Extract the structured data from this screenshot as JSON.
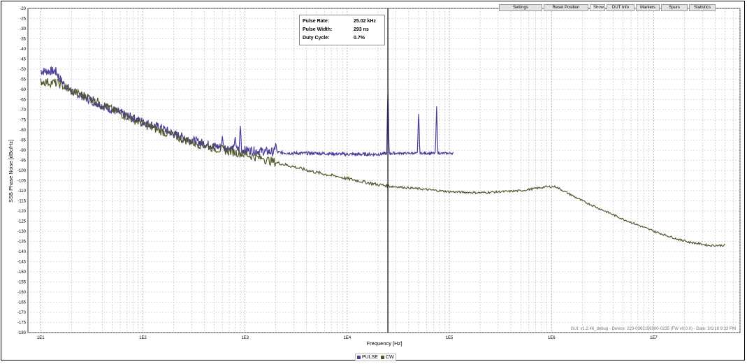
{
  "toolbar": {
    "buttons": [
      "Settings",
      "Reset Position",
      "Show",
      "DUT Info",
      "Markers",
      "Spurs",
      "Statistics"
    ]
  },
  "info": {
    "rows": [
      {
        "label": "Pulse Rate:",
        "value": "25.02 kHz"
      },
      {
        "label": "Pulse Width:",
        "value": "293 ns"
      },
      {
        "label": "Duty Cycle:",
        "value": "0.7%"
      }
    ]
  },
  "footer_note": "GUI: v1.2.46_debug - Device: 223-0363156900-0235 (FW v0.0.0) - Date: 3/1/18 9:32 PM",
  "legend": {
    "items": [
      {
        "name": "PULSE",
        "color": "#4b3f9a"
      },
      {
        "name": "CW",
        "color": "#4f5a2a"
      }
    ]
  },
  "chart_data": {
    "type": "line",
    "xlabel": "Frequency [Hz]",
    "ylabel": "SSB Phase Noise [dBc/Hz]",
    "xscale": "log",
    "xlim": [
      7.5,
      70000000
    ],
    "ylim": [
      -180,
      -20
    ],
    "xticks": [
      10,
      100,
      1000,
      10000,
      100000,
      1000000,
      10000000
    ],
    "xtick_labels": [
      "1E1",
      "1E2",
      "1E3",
      "1E4",
      "1E5",
      "1E6",
      "1E7"
    ],
    "yticks": [
      -20,
      -25,
      -30,
      -35,
      -40,
      -45,
      -50,
      -55,
      -60,
      -65,
      -70,
      -75,
      -80,
      -85,
      -90,
      -95,
      -100,
      -105,
      -110,
      -115,
      -120,
      -125,
      -130,
      -135,
      -140,
      -145,
      -150,
      -155,
      -160,
      -165,
      -170,
      -175,
      -180
    ],
    "grid": true,
    "marker_line_x": 25020,
    "series": [
      {
        "name": "PULSE",
        "color": "#4b3f9a",
        "points": [
          [
            10,
            -51
          ],
          [
            14,
            -51
          ],
          [
            16,
            -56
          ],
          [
            20,
            -61
          ],
          [
            25,
            -63
          ],
          [
            30,
            -65
          ],
          [
            40,
            -68
          ],
          [
            50,
            -70
          ],
          [
            70,
            -73
          ],
          [
            100,
            -76
          ],
          [
            150,
            -79
          ],
          [
            200,
            -82
          ],
          [
            300,
            -85
          ],
          [
            500,
            -88
          ],
          [
            700,
            -89
          ],
          [
            1000,
            -90
          ],
          [
            1500,
            -90.5
          ],
          [
            2000,
            -91
          ],
          [
            3000,
            -91.5
          ],
          [
            5000,
            -91.5
          ],
          [
            10000,
            -92
          ],
          [
            20000,
            -92
          ],
          [
            25020,
            -91.5
          ],
          [
            30000,
            -91.5
          ],
          [
            50000,
            -91.5
          ],
          [
            75000,
            -91.5
          ],
          [
            110000,
            -91.5
          ]
        ],
        "spurs": [
          [
            600,
            -83
          ],
          [
            800,
            -83
          ],
          [
            900,
            -77
          ],
          [
            2000,
            -86
          ],
          [
            25020,
            -58
          ],
          [
            50000,
            -70
          ],
          [
            75000,
            -68
          ]
        ]
      },
      {
        "name": "CW",
        "color": "#4f5a2a",
        "points": [
          [
            10,
            -56
          ],
          [
            15,
            -57
          ],
          [
            20,
            -61
          ],
          [
            30,
            -64
          ],
          [
            50,
            -70
          ],
          [
            100,
            -77
          ],
          [
            200,
            -83
          ],
          [
            300,
            -86
          ],
          [
            500,
            -89
          ],
          [
            1000,
            -92
          ],
          [
            2000,
            -96
          ],
          [
            5000,
            -101
          ],
          [
            10000,
            -104
          ],
          [
            20000,
            -107
          ],
          [
            30000,
            -108
          ],
          [
            50000,
            -109
          ],
          [
            100000,
            -110.5
          ],
          [
            200000,
            -111
          ],
          [
            500000,
            -110
          ],
          [
            900000,
            -108
          ],
          [
            1100000,
            -108
          ],
          [
            1300000,
            -110
          ],
          [
            2000000,
            -115
          ],
          [
            5000000,
            -124
          ],
          [
            10000000,
            -130
          ],
          [
            20000000,
            -135
          ],
          [
            35000000,
            -137
          ],
          [
            50000000,
            -137
          ]
        ],
        "spurs": [
          [
            1500,
            -94
          ],
          [
            3000,
            -99
          ],
          [
            8000,
            -103
          ],
          [
            1500000,
            -116
          ],
          [
            9500000,
            -129
          ],
          [
            20000000,
            -134
          ]
        ]
      }
    ]
  }
}
